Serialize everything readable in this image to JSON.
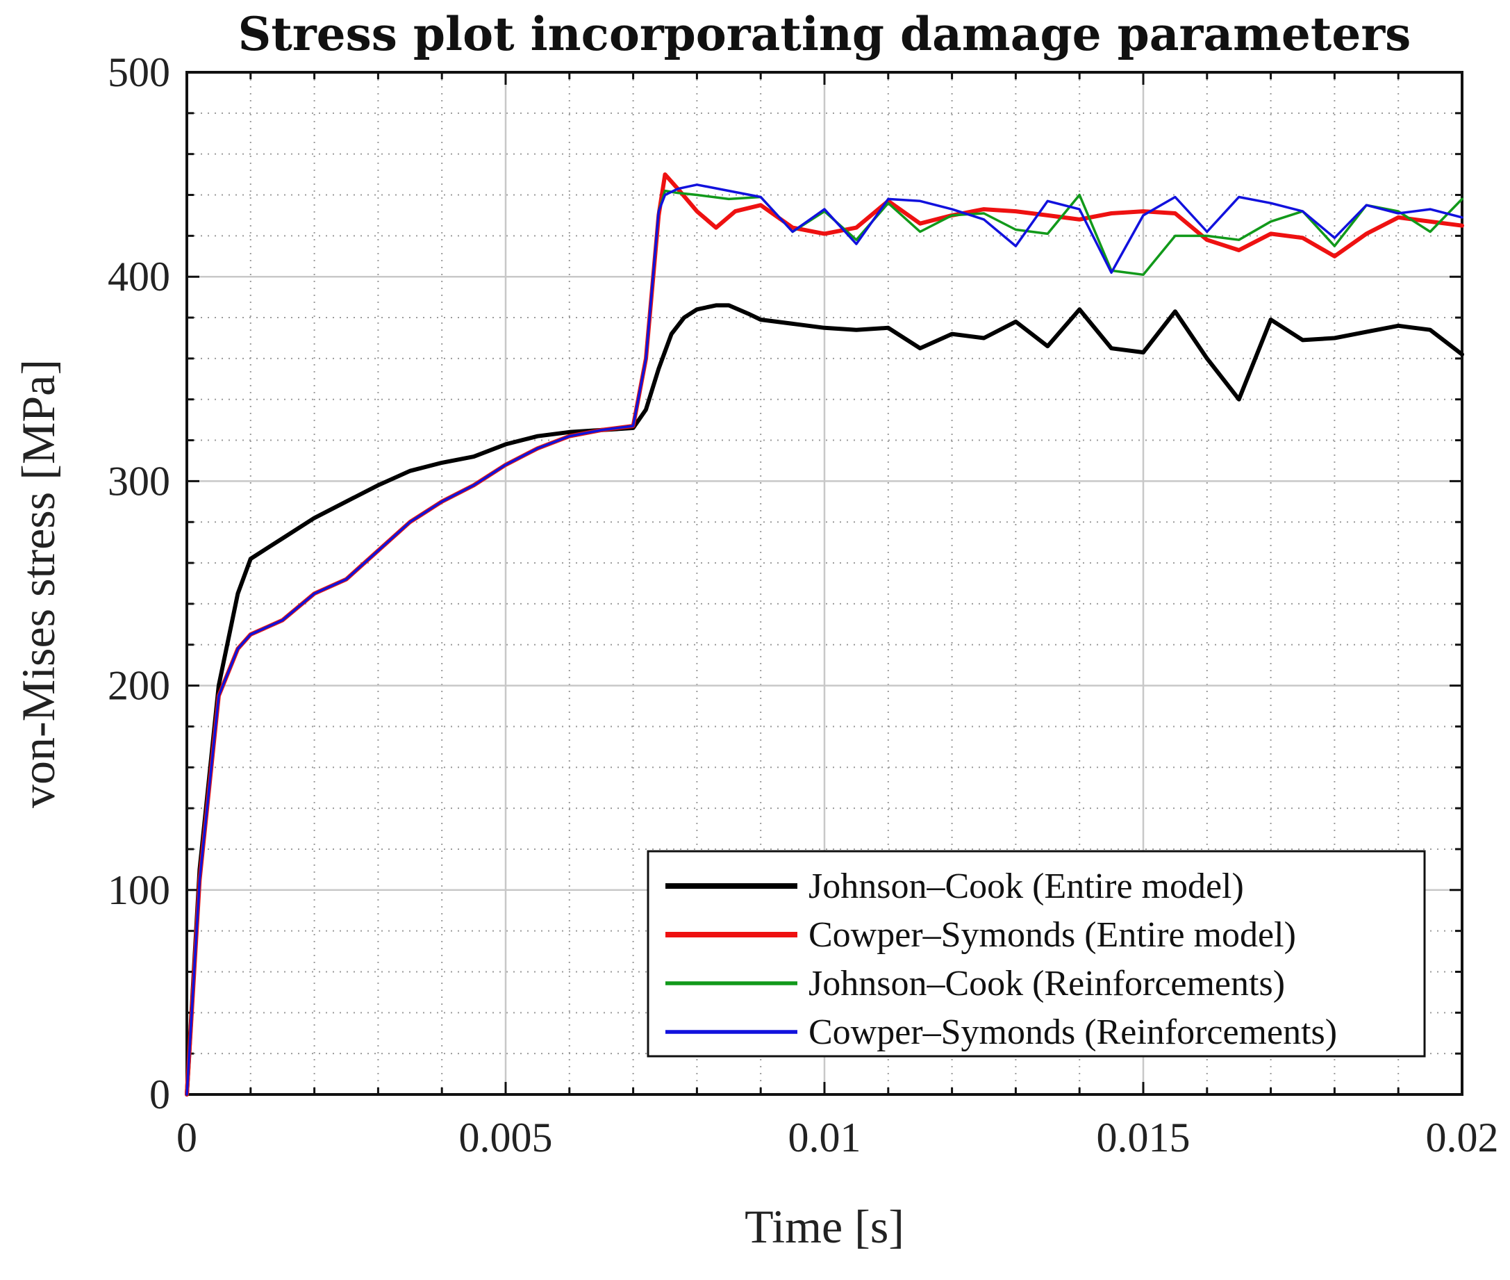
{
  "chart_data": {
    "type": "line",
    "title": "Stress plot incorporating damage parameters",
    "xlabel": "Time [s]",
    "ylabel": "von-Mises stress [MPa]",
    "xlim": [
      0,
      0.02
    ],
    "ylim": [
      0,
      500
    ],
    "xticks": [
      0,
      0.005,
      0.01,
      0.015,
      0.02
    ],
    "xtick_labels": [
      "0",
      "0.005",
      "0.01",
      "0.015",
      "0.02"
    ],
    "yticks": [
      0,
      100,
      200,
      300,
      400,
      500
    ],
    "ytick_labels": [
      "0",
      "100",
      "200",
      "300",
      "400",
      "500"
    ],
    "grid": true,
    "legend_position": "bottom-right",
    "series": [
      {
        "name": "Johnson–Cook (Entire model)",
        "color": "#000000",
        "width": "thick",
        "x": [
          0,
          0.0002,
          0.0005,
          0.0008,
          0.001,
          0.0013,
          0.0015,
          0.002,
          0.0025,
          0.003,
          0.0035,
          0.004,
          0.0045,
          0.005,
          0.0055,
          0.006,
          0.0065,
          0.007,
          0.0072,
          0.0074,
          0.0076,
          0.0078,
          0.008,
          0.0083,
          0.0085,
          0.0088,
          0.009,
          0.0095,
          0.01,
          0.0105,
          0.011,
          0.0115,
          0.012,
          0.0125,
          0.013,
          0.0135,
          0.014,
          0.0145,
          0.015,
          0.0155,
          0.016,
          0.0165,
          0.017,
          0.0175,
          0.018,
          0.0185,
          0.019,
          0.0195,
          0.02
        ],
        "values": [
          0,
          110,
          200,
          245,
          262,
          268,
          272,
          282,
          290,
          298,
          305,
          309,
          312,
          318,
          322,
          324,
          325,
          326,
          335,
          355,
          372,
          380,
          384,
          386,
          386,
          382,
          379,
          377,
          375,
          374,
          375,
          365,
          372,
          370,
          378,
          366,
          384,
          365,
          363,
          383,
          360,
          340,
          379,
          369,
          370,
          373,
          376,
          374,
          362
        ]
      },
      {
        "name": "Cowper–Symonds (Entire model)",
        "color": "#ee1111",
        "width": "thick",
        "x": [
          0,
          0.0002,
          0.0005,
          0.0008,
          0.001,
          0.0015,
          0.002,
          0.0025,
          0.003,
          0.0035,
          0.004,
          0.0045,
          0.005,
          0.0055,
          0.006,
          0.0065,
          0.007,
          0.0072,
          0.0074,
          0.0075,
          0.0077,
          0.008,
          0.0083,
          0.0086,
          0.009,
          0.0095,
          0.01,
          0.0105,
          0.011,
          0.0115,
          0.012,
          0.0125,
          0.013,
          0.0135,
          0.014,
          0.0145,
          0.015,
          0.0155,
          0.016,
          0.0165,
          0.017,
          0.0175,
          0.018,
          0.0185,
          0.019,
          0.0195,
          0.02
        ],
        "values": [
          0,
          105,
          195,
          218,
          225,
          232,
          245,
          252,
          266,
          280,
          290,
          298,
          308,
          316,
          322,
          325,
          327,
          360,
          430,
          450,
          443,
          432,
          424,
          432,
          435,
          424,
          421,
          424,
          437,
          426,
          430,
          433,
          432,
          430,
          428,
          431,
          432,
          431,
          418,
          413,
          421,
          419,
          410,
          421,
          429,
          427,
          425
        ]
      },
      {
        "name": "Johnson–Cook (Reinforcements)",
        "color": "#11991a",
        "width": "thin",
        "x": [
          0,
          0.0002,
          0.0005,
          0.0008,
          0.001,
          0.0015,
          0.002,
          0.0025,
          0.003,
          0.0035,
          0.004,
          0.0045,
          0.005,
          0.0055,
          0.006,
          0.0065,
          0.007,
          0.0072,
          0.0074,
          0.0075,
          0.0077,
          0.008,
          0.0085,
          0.009,
          0.0095,
          0.01,
          0.0105,
          0.011,
          0.0115,
          0.012,
          0.0125,
          0.013,
          0.0135,
          0.014,
          0.0145,
          0.015,
          0.0155,
          0.016,
          0.0165,
          0.017,
          0.0175,
          0.018,
          0.0185,
          0.019,
          0.0195,
          0.02
        ],
        "values": [
          0,
          105,
          195,
          218,
          225,
          232,
          245,
          252,
          266,
          280,
          290,
          298,
          308,
          316,
          322,
          325,
          327,
          360,
          432,
          442,
          441,
          440,
          438,
          439,
          422,
          432,
          418,
          436,
          422,
          430,
          431,
          423,
          421,
          440,
          403,
          401,
          420,
          420,
          418,
          427,
          432,
          415,
          435,
          432,
          422,
          438
        ]
      },
      {
        "name": "Cowper–Symonds (Reinforcements)",
        "color": "#1111dd",
        "width": "thin",
        "x": [
          0,
          0.0002,
          0.0005,
          0.0008,
          0.001,
          0.0015,
          0.002,
          0.0025,
          0.003,
          0.0035,
          0.004,
          0.0045,
          0.005,
          0.0055,
          0.006,
          0.0065,
          0.007,
          0.0072,
          0.0074,
          0.0075,
          0.0077,
          0.008,
          0.0085,
          0.009,
          0.0095,
          0.01,
          0.0105,
          0.011,
          0.0115,
          0.012,
          0.0125,
          0.013,
          0.0135,
          0.014,
          0.0145,
          0.015,
          0.0155,
          0.016,
          0.0165,
          0.017,
          0.0175,
          0.018,
          0.0185,
          0.019,
          0.0195,
          0.02
        ],
        "values": [
          0,
          105,
          195,
          218,
          225,
          232,
          245,
          252,
          266,
          280,
          290,
          298,
          308,
          316,
          322,
          325,
          327,
          360,
          432,
          440,
          443,
          445,
          442,
          439,
          422,
          433,
          416,
          438,
          437,
          433,
          428,
          415,
          437,
          433,
          402,
          430,
          439,
          422,
          439,
          436,
          432,
          419,
          435,
          431,
          433,
          429
        ]
      }
    ]
  }
}
